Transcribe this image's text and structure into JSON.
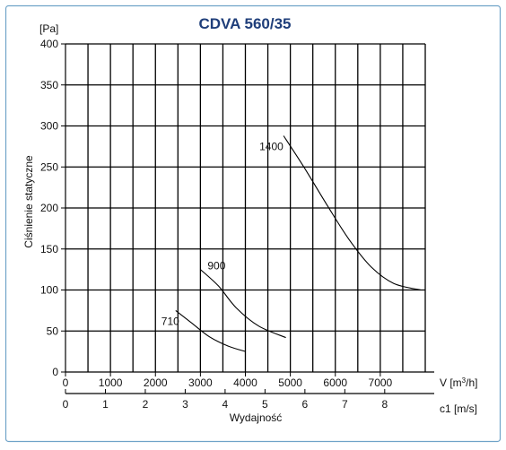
{
  "chart_data": {
    "type": "line",
    "title": "CDVA 560/35",
    "ylabel": "Ciśnienie statyczne",
    "yunit": "[Pa]",
    "ylim": [
      0,
      400
    ],
    "yticks": [
      0,
      50,
      100,
      150,
      200,
      250,
      300,
      350,
      400
    ],
    "xlabel": "V [m³/h]",
    "xlim": [
      0,
      8000
    ],
    "xticks": [
      0,
      1000,
      2000,
      3000,
      4000,
      5000,
      6000,
      7000
    ],
    "x2label": "c1 [m/s]",
    "x2ticks": [
      0,
      1,
      2,
      3,
      4,
      5,
      6,
      7,
      8
    ],
    "x2_per_x": 0.001127,
    "bottom_label": "Wydajność",
    "grid": true,
    "series": [
      {
        "name": "710",
        "x": [
          2450,
          2800,
          3200,
          3600,
          4000
        ],
        "y": [
          75,
          60,
          43,
          32,
          25
        ]
      },
      {
        "name": "900",
        "x": [
          3000,
          3400,
          3800,
          4300,
          4900
        ],
        "y": [
          125,
          105,
          78,
          56,
          42
        ]
      },
      {
        "name": "1400",
        "x": [
          4850,
          5300,
          5800,
          6300,
          6800,
          7300,
          7900
        ],
        "y": [
          288,
          250,
          205,
          162,
          128,
          108,
          100
        ]
      }
    ]
  }
}
